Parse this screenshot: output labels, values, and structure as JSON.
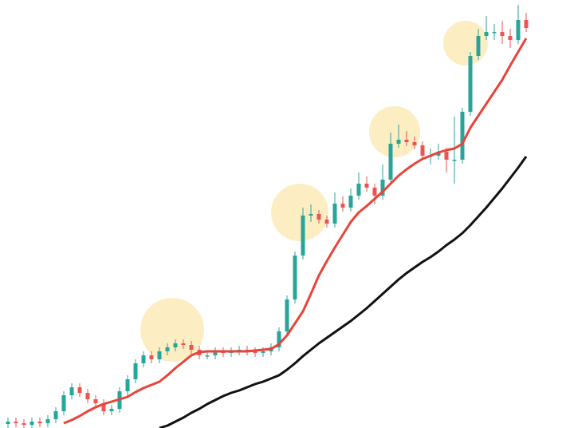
{
  "chart_data": {
    "type": "candlestick",
    "ylim": [
      0,
      536
    ],
    "up_color": "#26a69a",
    "down_color": "#ef5350",
    "open": [
      5,
      8,
      6,
      4,
      8,
      6,
      11,
      21,
      41,
      51,
      44,
      36,
      31,
      21,
      24,
      46,
      61,
      81,
      91,
      86,
      96,
      101,
      106,
      104,
      98,
      91,
      91,
      96,
      94,
      96,
      98,
      96,
      94,
      96,
      101,
      121,
      161,
      216,
      266,
      268,
      261,
      256,
      281,
      276,
      291,
      306,
      301,
      291,
      311,
      356,
      361,
      358,
      354,
      341,
      341,
      346,
      336,
      336,
      396,
      466,
      491,
      496,
      496,
      491,
      486,
      511
    ],
    "high": [
      13,
      13,
      11,
      13,
      13,
      16,
      26,
      46,
      56,
      56,
      49,
      41,
      36,
      29,
      51,
      66,
      86,
      96,
      96,
      101,
      106,
      111,
      111,
      109,
      103,
      96,
      101,
      101,
      101,
      103,
      103,
      101,
      101,
      106,
      126,
      166,
      221,
      276,
      280,
      273,
      266,
      295,
      290,
      300,
      320,
      315,
      306,
      330,
      370,
      380,
      372,
      365,
      359,
      350,
      356,
      351,
      390,
      401,
      471,
      500,
      516,
      506,
      510,
      500,
      530,
      520
    ],
    "low": [
      0,
      1,
      0,
      0,
      1,
      1,
      6,
      16,
      36,
      39,
      31,
      26,
      16,
      16,
      19,
      41,
      56,
      76,
      81,
      81,
      91,
      96,
      99,
      93,
      86,
      86,
      86,
      89,
      89,
      91,
      91,
      89,
      89,
      91,
      96,
      116,
      156,
      211,
      258,
      256,
      251,
      251,
      271,
      271,
      286,
      296,
      280,
      286,
      306,
      351,
      353,
      349,
      336,
      330,
      336,
      320,
      306,
      331,
      391,
      461,
      486,
      486,
      481,
      476,
      481,
      496
    ],
    "close": [
      8,
      6,
      4,
      8,
      6,
      11,
      21,
      41,
      51,
      44,
      36,
      31,
      21,
      24,
      46,
      61,
      81,
      91,
      86,
      96,
      101,
      106,
      104,
      98,
      91,
      91,
      96,
      94,
      96,
      98,
      96,
      94,
      96,
      101,
      121,
      161,
      216,
      266,
      268,
      261,
      256,
      281,
      276,
      291,
      306,
      301,
      291,
      311,
      356,
      361,
      358,
      354,
      341,
      341,
      346,
      336,
      336,
      396,
      466,
      491,
      496,
      496,
      491,
      486,
      511,
      501
    ],
    "series": [
      {
        "color": "#e8443a",
        "values": [
          null,
          null,
          null,
          null,
          null,
          null,
          null,
          6,
          10,
          15,
          21,
          26,
          30,
          33,
          36,
          39,
          45,
          50,
          54,
          58,
          66,
          75,
          83,
          91,
          95,
          96,
          96,
          96,
          96,
          96,
          96,
          97,
          98,
          99,
          105,
          116,
          131,
          146,
          168,
          191,
          209,
          226,
          242,
          258,
          270,
          278,
          287,
          296,
          306,
          316,
          324,
          331,
          337,
          341,
          345,
          348,
          350,
          356,
          376,
          391,
          406,
          421,
          436,
          454,
          471,
          488
        ]
      },
      {
        "color": "#111111",
        "values": [
          null,
          null,
          null,
          null,
          null,
          null,
          null,
          null,
          null,
          null,
          null,
          null,
          null,
          null,
          null,
          null,
          null,
          null,
          null,
          0,
          3,
          8,
          13,
          19,
          24,
          30,
          35,
          40,
          44,
          47,
          51,
          55,
          58,
          62,
          66,
          73,
          81,
          90,
          98,
          106,
          113,
          120,
          127,
          134,
          142,
          150,
          159,
          168,
          177,
          186,
          194,
          201,
          208,
          214,
          221,
          229,
          236,
          244,
          254,
          265,
          276,
          288,
          300,
          313,
          326,
          340
        ]
      }
    ]
  }
}
